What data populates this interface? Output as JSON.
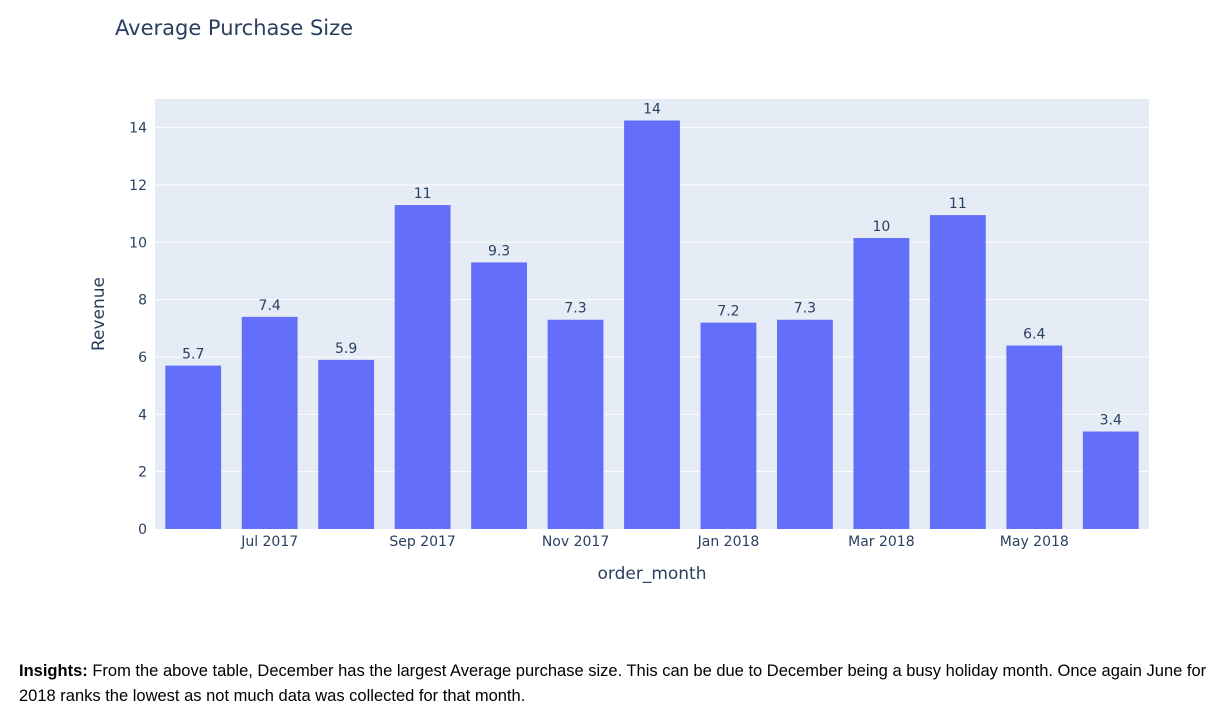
{
  "colors": {
    "bar": "#636efa",
    "plot_background": "#e5ecf6",
    "gridline": "#ffffff",
    "text": "#2a3f5f"
  },
  "chart_data": {
    "type": "bar",
    "title": "Average Purchase Size",
    "xlabel": "order_month",
    "ylabel": "Revenue",
    "categories": [
      "2017-06",
      "2017-07",
      "2017-08",
      "2017-09",
      "2017-10",
      "2017-11",
      "2017-12",
      "2018-01",
      "2018-02",
      "2018-03",
      "2018-04",
      "2018-05",
      "2018-06"
    ],
    "values": [
      5.7,
      7.4,
      5.9,
      11.3,
      9.3,
      7.3,
      14.25,
      7.2,
      7.3,
      10.15,
      10.95,
      6.4,
      3.4
    ],
    "data_labels": [
      "5.7",
      "7.4",
      "5.9",
      "11",
      "9.3",
      "7.3",
      "14",
      "7.2",
      "7.3",
      "10",
      "11",
      "6.4",
      "3.4"
    ],
    "x_ticks": [
      {
        "index": 1,
        "label": "Jul 2017"
      },
      {
        "index": 3,
        "label": "Sep 2017"
      },
      {
        "index": 5,
        "label": "Nov 2017"
      },
      {
        "index": 7,
        "label": "Jan 2018"
      },
      {
        "index": 9,
        "label": "Mar 2018"
      },
      {
        "index": 11,
        "label": "May 2018"
      }
    ],
    "y_ticks": [
      0,
      2,
      4,
      6,
      8,
      10,
      12,
      14
    ],
    "ylim": [
      0,
      15
    ],
    "grid": true,
    "legend": false
  },
  "insights": {
    "label": "Insights:",
    "text": "From the above table, December has the largest Average purchase size. This can be due to December being a busy holiday month. Once again June for 2018 ranks the lowest as not much data was collected for that month."
  }
}
